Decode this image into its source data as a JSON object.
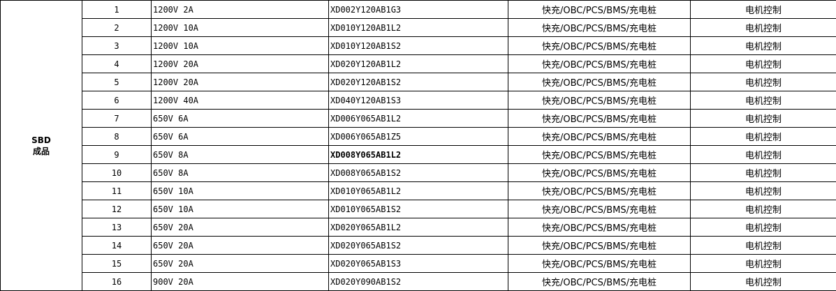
{
  "category": {
    "line1": "SBD",
    "line2": "成品"
  },
  "rows": [
    {
      "no": "1",
      "spec": "1200V 2A",
      "part": "XD002Y120AB1G3",
      "app": "快充/OBC/PCS/BMS/充电桩",
      "use": "电机控制"
    },
    {
      "no": "2",
      "spec": "1200V 10A",
      "part": "XD010Y120AB1L2",
      "app": "快充/OBC/PCS/BMS/充电桩",
      "use": "电机控制"
    },
    {
      "no": "3",
      "spec": "1200V 10A",
      "part": "XD010Y120AB1S2",
      "app": "快充/OBC/PCS/BMS/充电桩",
      "use": "电机控制"
    },
    {
      "no": "4",
      "spec": "1200V 20A",
      "part": "XD020Y120AB1L2",
      "app": "快充/OBC/PCS/BMS/充电桩",
      "use": "电机控制"
    },
    {
      "no": "5",
      "spec": "1200V 20A",
      "part": "XD020Y120AB1S2",
      "app": "快充/OBC/PCS/BMS/充电桩",
      "use": "电机控制"
    },
    {
      "no": "6",
      "spec": "1200V 40A",
      "part": "XD040Y120AB1S3",
      "app": "快充/OBC/PCS/BMS/充电桩",
      "use": "电机控制"
    },
    {
      "no": "7",
      "spec": "650V 6A",
      "part": "XD006Y065AB1L2",
      "app": "快充/OBC/PCS/BMS/充电桩",
      "use": "电机控制"
    },
    {
      "no": "8",
      "spec": "650V 6A",
      "part": "XD006Y065AB1Z5",
      "app": "快充/OBC/PCS/BMS/充电桩",
      "use": "电机控制"
    },
    {
      "no": "9",
      "spec": "650V 8A",
      "part": "XD008Y065AB1L2",
      "app": "快充/OBC/PCS/BMS/充电桩",
      "use": "电机控制",
      "bold": true
    },
    {
      "no": "10",
      "spec": "650V 8A",
      "part": "XD008Y065AB1S2",
      "app": "快充/OBC/PCS/BMS/充电桩",
      "use": "电机控制"
    },
    {
      "no": "11",
      "spec": "650V 10A",
      "part": "XD010Y065AB1L2",
      "app": "快充/OBC/PCS/BMS/充电桩",
      "use": "电机控制"
    },
    {
      "no": "12",
      "spec": "650V 10A",
      "part": "XD010Y065AB1S2",
      "app": "快充/OBC/PCS/BMS/充电桩",
      "use": "电机控制"
    },
    {
      "no": "13",
      "spec": "650V 20A",
      "part": "XD020Y065AB1L2",
      "app": "快充/OBC/PCS/BMS/充电桩",
      "use": "电机控制"
    },
    {
      "no": "14",
      "spec": "650V 20A",
      "part": "XD020Y065AB1S2",
      "app": "快充/OBC/PCS/BMS/充电桩",
      "use": "电机控制"
    },
    {
      "no": "15",
      "spec": "650V 20A",
      "part": "XD020Y065AB1S3",
      "app": "快充/OBC/PCS/BMS/充电桩",
      "use": "电机控制"
    },
    {
      "no": "16",
      "spec": "900V 20A",
      "part": "XD020Y090AB1S2",
      "app": "快充/OBC/PCS/BMS/充电桩",
      "use": "电机控制"
    }
  ]
}
